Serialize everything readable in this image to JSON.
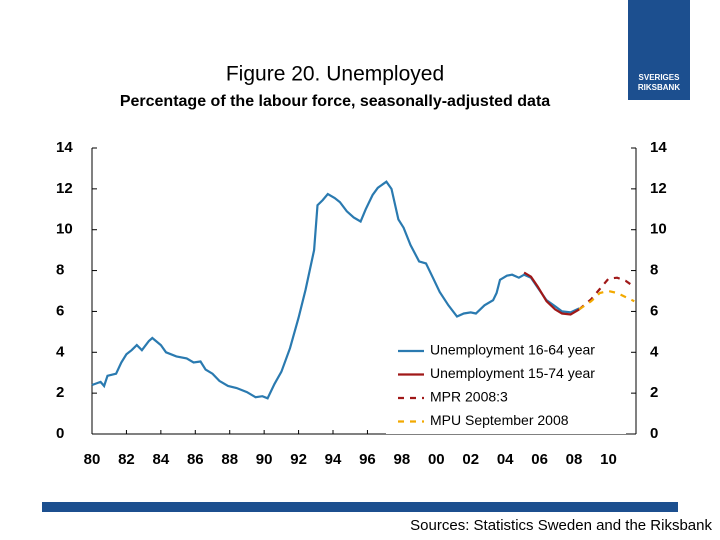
{
  "chart_data": {
    "type": "line",
    "title": "Figure 20. Unemployed",
    "subtitle": "Percentage of the labour force, seasonally-adjusted data",
    "source": "Sources: Statistics Sweden and the Riksbank",
    "logo_text": [
      "SVERIGES",
      "RIKSBANK"
    ],
    "xlim": [
      1980,
      2011.6
    ],
    "xticks": [
      {
        "value": 1980,
        "label": "80"
      },
      {
        "value": 1982,
        "label": "82"
      },
      {
        "value": 1984,
        "label": "84"
      },
      {
        "value": 1986,
        "label": "86"
      },
      {
        "value": 1988,
        "label": "88"
      },
      {
        "value": 1990,
        "label": "90"
      },
      {
        "value": 1992,
        "label": "92"
      },
      {
        "value": 1994,
        "label": "94"
      },
      {
        "value": 1996,
        "label": "96"
      },
      {
        "value": 1998,
        "label": "98"
      },
      {
        "value": 2000,
        "label": "00"
      },
      {
        "value": 2002,
        "label": "02"
      },
      {
        "value": 2004,
        "label": "04"
      },
      {
        "value": 2006,
        "label": "06"
      },
      {
        "value": 2008,
        "label": "08"
      },
      {
        "value": 2010,
        "label": "10"
      }
    ],
    "ylim": [
      0,
      14
    ],
    "yticks": [
      0,
      2,
      4,
      6,
      8,
      10,
      12,
      14
    ],
    "y2lim": [
      0,
      14
    ],
    "y2ticks": [
      0,
      2,
      4,
      6,
      8,
      10,
      12,
      14
    ],
    "legend": "lower right",
    "series": [
      {
        "name": "Unemployment 16-64 year",
        "color": "#2a7ab0",
        "line_style": "solid",
        "x": [
          1980.0,
          1980.5,
          1980.7,
          1980.9,
          1981.4,
          1981.7,
          1982.0,
          1982.3,
          1982.6,
          1982.9,
          1983.3,
          1983.5,
          1984.0,
          1984.3,
          1984.9,
          1985.5,
          1985.9,
          1986.3,
          1986.6,
          1987.0,
          1987.4,
          1987.9,
          1988.4,
          1989.0,
          1989.5,
          1989.9,
          1990.2,
          1990.6,
          1991.0,
          1991.5,
          1992.0,
          1992.4,
          1992.9,
          1993.1,
          1993.4,
          1993.7,
          1994.1,
          1994.4,
          1994.8,
          1995.2,
          1995.6,
          1995.9,
          1996.3,
          1996.6,
          1997.1,
          1997.4,
          1997.8,
          1998.1,
          1998.5,
          1999.0,
          1999.4,
          1999.8,
          2000.2,
          2000.7,
          2001.2,
          2001.6,
          2002.0,
          2002.3,
          2002.8,
          2003.3,
          2003.5,
          2003.7,
          2004.1,
          2004.4,
          2004.8,
          2005.1,
          2005.5,
          2005.9,
          2006.4,
          2006.9,
          2007.3,
          2007.8,
          2008.3
        ],
        "values": [
          2.4,
          2.55,
          2.35,
          2.85,
          2.95,
          3.5,
          3.9,
          4.1,
          4.35,
          4.1,
          4.55,
          4.7,
          4.35,
          4.0,
          3.8,
          3.7,
          3.5,
          3.55,
          3.15,
          2.95,
          2.6,
          2.35,
          2.25,
          2.05,
          1.8,
          1.85,
          1.75,
          2.45,
          3.05,
          4.2,
          5.7,
          7.05,
          9.0,
          11.2,
          11.45,
          11.75,
          11.55,
          11.35,
          10.9,
          10.6,
          10.4,
          11.0,
          11.7,
          12.05,
          12.35,
          12.0,
          10.5,
          10.1,
          9.25,
          8.45,
          8.35,
          7.65,
          6.95,
          6.3,
          5.75,
          5.9,
          5.95,
          5.9,
          6.3,
          6.55,
          6.9,
          7.55,
          7.75,
          7.8,
          7.65,
          7.8,
          7.65,
          7.15,
          6.55,
          6.25,
          6.0,
          5.95,
          6.15
        ]
      },
      {
        "name": "Unemployment 15-74 year",
        "color": "#a01818",
        "line_style": "solid",
        "x": [
          2005.1,
          2005.5,
          2005.9,
          2006.4,
          2006.9,
          2007.3,
          2007.8,
          2008.3
        ],
        "values": [
          7.9,
          7.7,
          7.2,
          6.5,
          6.1,
          5.9,
          5.85,
          6.1
        ]
      },
      {
        "name": "MPR 2008:3",
        "color": "#a01818",
        "line_style": "dashed",
        "x": [
          2008.3,
          2009.0,
          2009.5,
          2010.0,
          2010.5,
          2011.0,
          2011.5
        ],
        "values": [
          6.1,
          6.6,
          7.1,
          7.6,
          7.65,
          7.5,
          7.2
        ]
      },
      {
        "name": "MPU September 2008",
        "color": "#f2a900",
        "line_style": "dashed",
        "x": [
          2008.3,
          2009.0,
          2009.5,
          2010.0,
          2010.5,
          2011.0,
          2011.5
        ],
        "values": [
          6.1,
          6.5,
          6.9,
          7.0,
          6.9,
          6.7,
          6.5
        ]
      }
    ]
  }
}
